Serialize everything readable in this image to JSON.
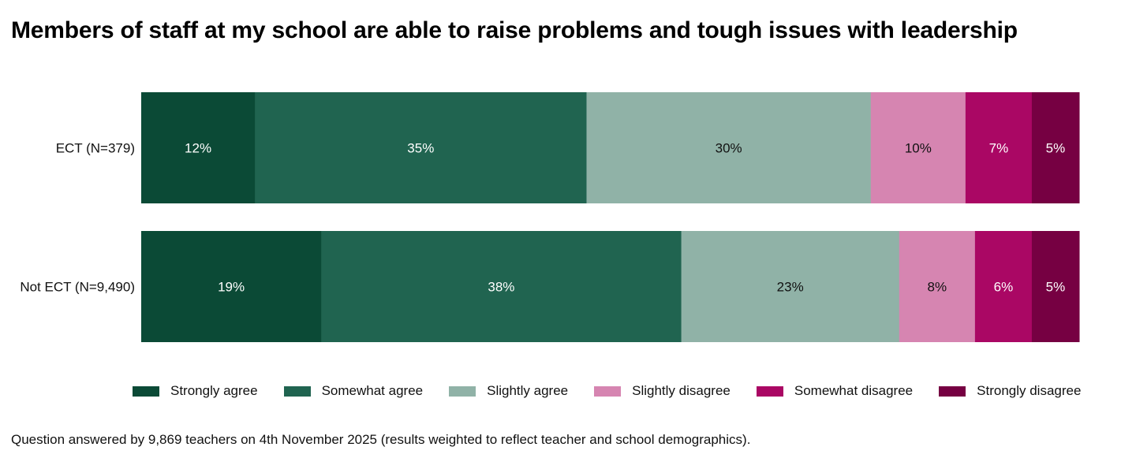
{
  "chart_data": {
    "type": "bar",
    "orientation": "horizontal",
    "stacked": true,
    "title": "Members of staff at my school are able to raise problems and tough issues with leadership",
    "categories": [
      "ECT (N=379)",
      "Not ECT (N=9,490)"
    ],
    "series": [
      {
        "name": "Strongly agree",
        "color": "#0b4a36",
        "label_color": "#ffffff",
        "values": [
          12,
          19
        ],
        "labels": [
          "12%",
          "19%"
        ]
      },
      {
        "name": "Somewhat agree",
        "color": "#206450",
        "label_color": "#ffffff",
        "values": [
          35,
          38
        ],
        "labels": [
          "35%",
          "38%"
        ]
      },
      {
        "name": "Slightly agree",
        "color": "#90b2a7",
        "label_color": "#111111",
        "values": [
          30,
          23
        ],
        "labels": [
          "30%",
          "23%"
        ]
      },
      {
        "name": "Slightly disagree",
        "color": "#d685b1",
        "label_color": "#111111",
        "values": [
          10,
          8
        ],
        "labels": [
          "10%",
          "8%"
        ]
      },
      {
        "name": "Somewhat disagree",
        "color": "#aa0764",
        "label_color": "#ffffff",
        "values": [
          7,
          6
        ],
        "labels": [
          "7%",
          "6%"
        ]
      },
      {
        "name": "Strongly disagree",
        "color": "#760042",
        "label_color": "#ffffff",
        "values": [
          5,
          5
        ],
        "labels": [
          "5%",
          "5%"
        ]
      }
    ],
    "xlim": [
      0,
      100
    ],
    "grid": false,
    "legend": "bottom",
    "note": "Question answered by 9,869 teachers on 4th November 2025 (results weighted to reflect teacher and school demographics)."
  }
}
